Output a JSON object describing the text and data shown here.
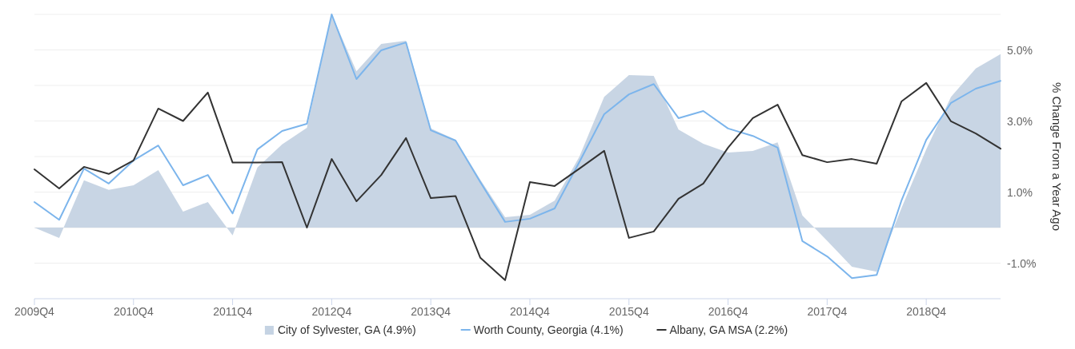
{
  "chart_data": {
    "type": "line",
    "ylabel": "% Change From a Year Ago",
    "categories": [
      "2009Q4",
      null,
      null,
      null,
      "2010Q4",
      null,
      null,
      null,
      "2011Q4",
      null,
      null,
      null,
      "2012Q4",
      null,
      null,
      null,
      "2013Q4",
      null,
      null,
      null,
      "2014Q4",
      null,
      null,
      null,
      "2015Q4",
      null,
      null,
      null,
      "2016Q4",
      null,
      null,
      null,
      "2017Q4",
      null,
      null,
      null,
      "2018Q4",
      null,
      null,
      null
    ],
    "series": [
      {
        "name": "City of Sylvester, GA (4.9%)",
        "type": "area",
        "color": "#c5d3e3",
        "values": [
          0.0,
          -0.29,
          1.33,
          1.06,
          1.19,
          1.62,
          0.45,
          0.72,
          -0.22,
          1.69,
          2.34,
          2.81,
          6.0,
          4.4,
          5.17,
          5.26,
          2.79,
          2.47,
          1.35,
          0.29,
          0.36,
          0.76,
          2.0,
          3.68,
          4.29,
          4.27,
          2.76,
          2.36,
          2.11,
          2.16,
          2.4,
          0.34,
          -0.37,
          -1.1,
          -1.24,
          0.55,
          2.2,
          3.68,
          4.48,
          4.88
        ]
      },
      {
        "name": "Worth County, Georgia (4.1%)",
        "color": "#7cb5ec",
        "values": [
          0.72,
          0.22,
          1.66,
          1.24,
          1.89,
          2.31,
          1.19,
          1.48,
          0.4,
          2.2,
          2.72,
          2.92,
          6.0,
          4.18,
          4.99,
          5.21,
          2.74,
          2.45,
          1.28,
          0.16,
          0.25,
          0.54,
          1.85,
          3.19,
          3.75,
          4.04,
          3.08,
          3.28,
          2.79,
          2.58,
          2.25,
          -0.38,
          -0.81,
          -1.42,
          -1.33,
          0.76,
          2.47,
          3.51,
          3.91,
          4.13
        ]
      },
      {
        "name": "Albany, GA MSA (2.2%)",
        "color": "#333333",
        "values": [
          1.64,
          1.1,
          1.71,
          1.51,
          1.89,
          3.35,
          3.0,
          3.8,
          1.83,
          1.83,
          1.84,
          0.0,
          1.93,
          0.74,
          1.48,
          2.52,
          0.83,
          0.89,
          -0.85,
          -1.48,
          1.28,
          1.17,
          1.66,
          2.16,
          -0.29,
          -0.11,
          0.81,
          1.24,
          2.25,
          3.08,
          3.46,
          2.04,
          1.84,
          1.93,
          1.8,
          3.55,
          4.07,
          2.99,
          2.65,
          2.22
        ]
      }
    ],
    "ylim": [
      -2,
      6
    ],
    "yticks": [
      {
        "value": -1,
        "label": "-1.0%"
      },
      {
        "value": 0,
        "label": null
      },
      {
        "value": 1,
        "label": "1.0%"
      },
      {
        "value": 2,
        "label": null
      },
      {
        "value": 3,
        "label": "3.0%"
      },
      {
        "value": 4,
        "label": null
      },
      {
        "value": 5,
        "label": "5.0%"
      },
      {
        "value": 6,
        "label": null
      }
    ],
    "grid": "y",
    "legend": "bottom",
    "marker": "none",
    "line_style": "solid"
  }
}
